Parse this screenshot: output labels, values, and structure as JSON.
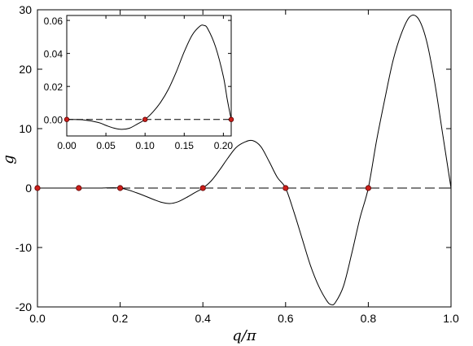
{
  "chart_data": {
    "main": {
      "type": "line",
      "xlabel": "q/π",
      "ylabel": "g",
      "xlim": [
        0.0,
        1.0
      ],
      "ylim": [
        -20,
        30
      ],
      "xticks": [
        0.0,
        0.2,
        0.4,
        0.6,
        0.8,
        1.0
      ],
      "xtick_labels": [
        "0.0",
        "0.2",
        "0.4",
        "0.6",
        "0.8",
        "1.0"
      ],
      "yticks": [
        -20,
        -10,
        0,
        10,
        20,
        30
      ],
      "ytick_labels": [
        "-20",
        "-10",
        "0",
        "10",
        "20",
        "30"
      ],
      "grid": false,
      "series": [
        {
          "style": "solid",
          "color": "#000000",
          "x": [
            0.0,
            0.1,
            0.15,
            0.2,
            0.24,
            0.28,
            0.3,
            0.32,
            0.34,
            0.36,
            0.38,
            0.4,
            0.42,
            0.44,
            0.46,
            0.48,
            0.5,
            0.52,
            0.54,
            0.56,
            0.58,
            0.6,
            0.62,
            0.64,
            0.66,
            0.68,
            0.7,
            0.71,
            0.72,
            0.74,
            0.76,
            0.78,
            0.8,
            0.82,
            0.84,
            0.86,
            0.88,
            0.9,
            0.92,
            0.94,
            0.96,
            0.98,
            1.0
          ],
          "y": [
            0.0,
            0.0,
            0.0,
            0.0,
            -0.8,
            -1.9,
            -2.4,
            -2.6,
            -2.3,
            -1.6,
            -0.8,
            0.0,
            1.2,
            3.0,
            5.0,
            6.8,
            7.7,
            8.0,
            7.0,
            4.5,
            1.8,
            0.0,
            -4.0,
            -8.5,
            -13.0,
            -16.5,
            -19.0,
            -19.6,
            -19.3,
            -16.5,
            -11.0,
            -5.0,
            0.0,
            8.0,
            15.0,
            21.5,
            26.0,
            28.8,
            28.6,
            25.0,
            18.0,
            9.0,
            0.0
          ]
        },
        {
          "style": "dashed",
          "color": "#000000",
          "x": [
            0.0,
            1.0
          ],
          "y": [
            0.0,
            0.0
          ]
        }
      ],
      "markers": {
        "color": "#cc1f1a",
        "x": [
          0.0,
          0.1,
          0.2,
          0.4,
          0.6,
          0.8
        ],
        "y": [
          0.0,
          0.0,
          0.0,
          0.0,
          0.0,
          0.0
        ]
      }
    },
    "inset": {
      "type": "line",
      "xlim": [
        0.0,
        0.21
      ],
      "ylim": [
        -0.01,
        0.063
      ],
      "xticks": [
        0.0,
        0.05,
        0.1,
        0.15,
        0.2
      ],
      "xtick_labels": [
        "0.00",
        "0.05",
        "0.10",
        "0.15",
        "0.20"
      ],
      "yticks": [
        0.0,
        0.02,
        0.04,
        0.06
      ],
      "ytick_labels": [
        "0.00",
        "0.02",
        "0.04",
        "0.06"
      ],
      "series": [
        {
          "style": "solid",
          "color": "#000000",
          "x": [
            0.0,
            0.02,
            0.04,
            0.05,
            0.06,
            0.07,
            0.08,
            0.09,
            0.1,
            0.11,
            0.12,
            0.13,
            0.14,
            0.15,
            0.16,
            0.17,
            0.175,
            0.18,
            0.19,
            0.2,
            0.205,
            0.21
          ],
          "y": [
            0.0,
            -0.0002,
            -0.0018,
            -0.0036,
            -0.0052,
            -0.006,
            -0.0053,
            -0.0028,
            0.0,
            0.0045,
            0.0105,
            0.0185,
            0.029,
            0.041,
            0.051,
            0.0565,
            0.057,
            0.055,
            0.044,
            0.026,
            0.012,
            0.0
          ]
        },
        {
          "style": "dashed",
          "color": "#000000",
          "x": [
            0.0,
            0.21
          ],
          "y": [
            0.0,
            0.0
          ]
        }
      ],
      "markers": {
        "color": "#cc1f1a",
        "x": [
          0.0,
          0.1,
          0.21
        ],
        "y": [
          0.0,
          0.0,
          0.0
        ]
      }
    }
  }
}
